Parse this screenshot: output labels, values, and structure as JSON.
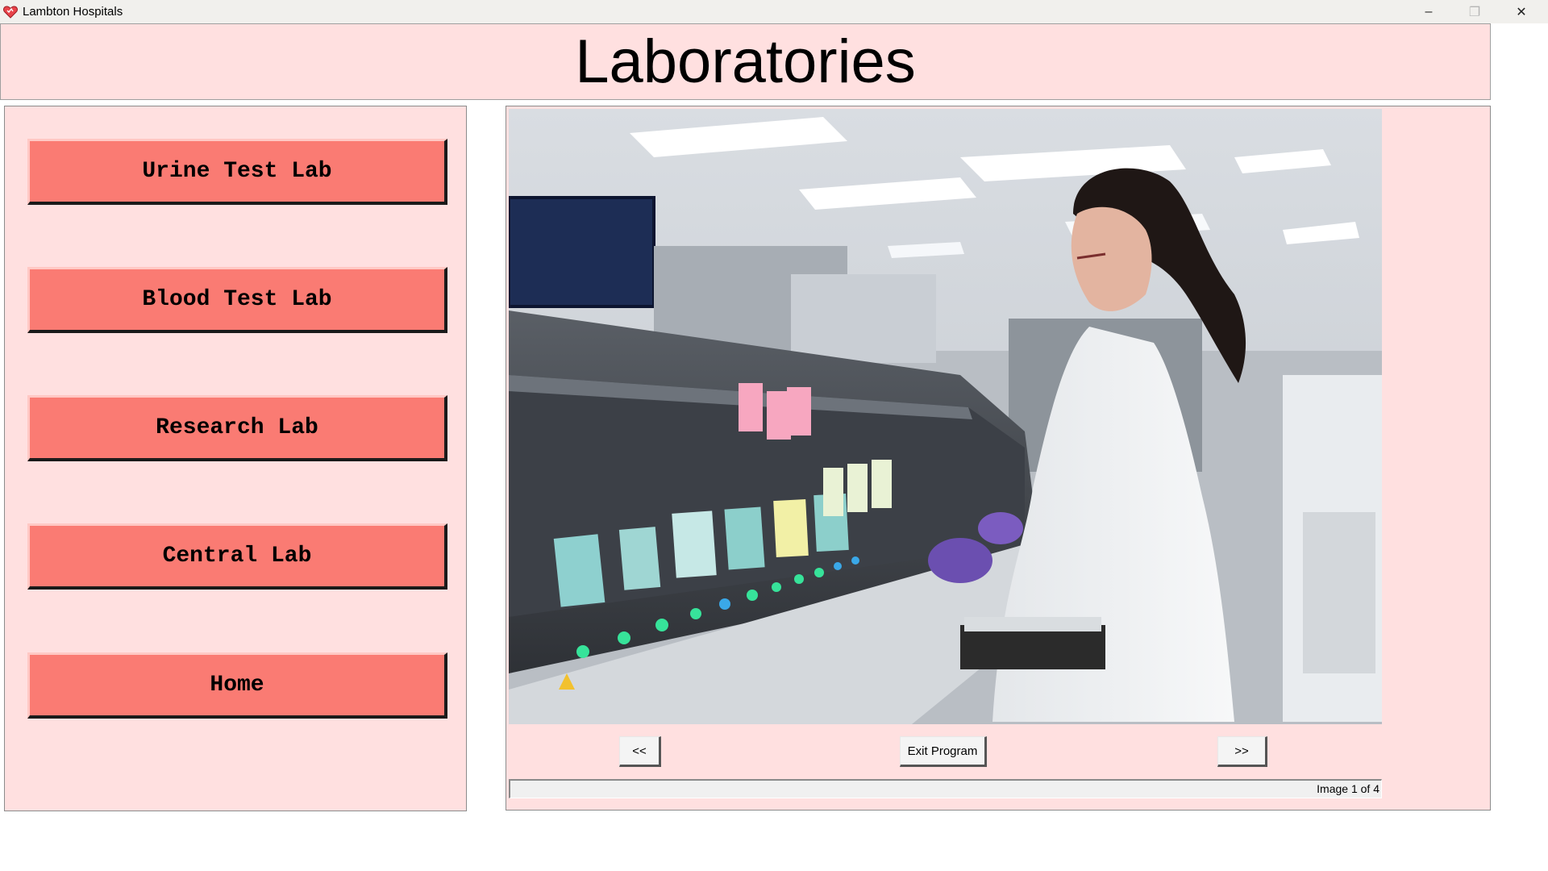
{
  "window": {
    "title": "Lambton Hospitals",
    "controls": {
      "minimize": "–",
      "maximize": "❐",
      "close": "✕"
    }
  },
  "header": {
    "title": "Laboratories"
  },
  "sidebar": {
    "buttons": [
      {
        "label": "Urine Test Lab"
      },
      {
        "label": "Blood Test Lab"
      },
      {
        "label": "Research Lab"
      },
      {
        "label": "Central Lab"
      },
      {
        "label": "Home"
      }
    ]
  },
  "viewer": {
    "prev_label": "<<",
    "exit_label": "Exit Program",
    "next_label": ">>",
    "status": "Image 1 of 4"
  },
  "colors": {
    "panel_bg": "#ffe0e0",
    "button_bg": "#fa7b73"
  }
}
